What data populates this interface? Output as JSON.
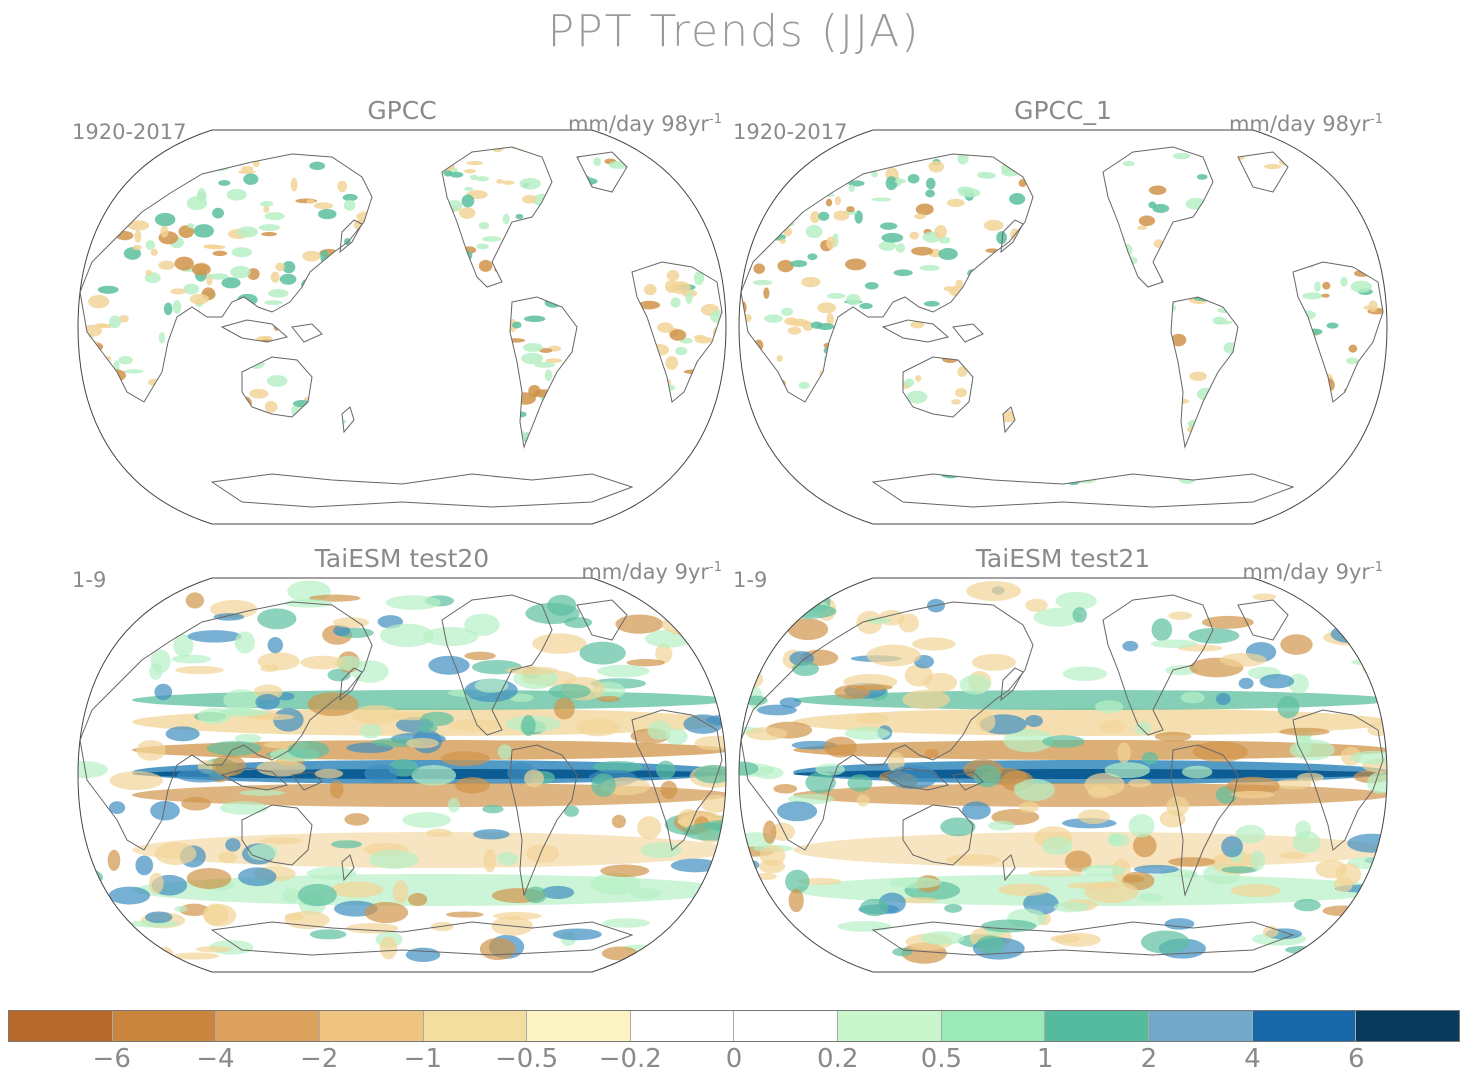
{
  "figure": {
    "title": "PPT Trends (JJA)"
  },
  "panels": [
    {
      "title": "GPCC",
      "period": "1920-2017",
      "units": "mm/day 98yr",
      "units_exp": "-1",
      "style": "obs"
    },
    {
      "title": "GPCC_1",
      "period": "1920-2017",
      "units": "mm/day 98yr",
      "units_exp": "-1",
      "style": "obs"
    },
    {
      "title": "TaiESM test20",
      "period": "1-9",
      "units": "mm/day 9yr",
      "units_exp": "-1",
      "style": "model"
    },
    {
      "title": "TaiESM test21",
      "period": "1-9",
      "units": "mm/day 9yr",
      "units_exp": "-1",
      "style": "model"
    }
  ],
  "colorbar": {
    "colors": [
      "#b5682a",
      "#c9853e",
      "#dca25e",
      "#eec47f",
      "#f3dea0",
      "#fcf3c4",
      "#ffffff",
      "#ffffff",
      "#c9f7cd",
      "#9aeab7",
      "#55bb9f",
      "#72a9c9",
      "#1668a8",
      "#073a5c"
    ],
    "ticks": [
      "−6",
      "−4",
      "−2",
      "−1",
      "−0.5",
      "−0.2",
      "0",
      "0.2",
      "0.5",
      "1",
      "2",
      "4",
      "6"
    ]
  },
  "colors": {
    "dry_strong": "#d0944a",
    "dry_light": "#f2d497",
    "wet_light": "#b6efc4",
    "wet_mid": "#5cbf9f",
    "wet_strong": "#3f8fc0",
    "wet_max": "#0a5a92",
    "coast": "#666666"
  }
}
